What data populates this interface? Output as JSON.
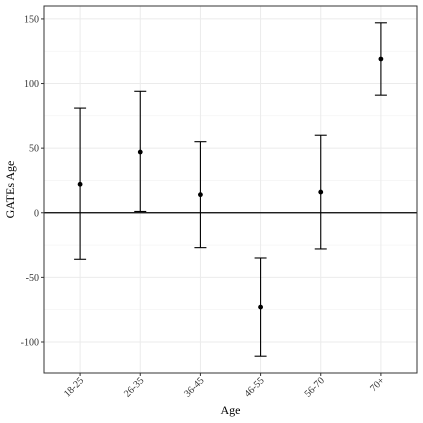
{
  "chart_data": {
    "type": "errorbar",
    "xlabel": "Age",
    "ylabel": "GATEs Age",
    "categories": [
      "18-25",
      "26-35",
      "36-45",
      "46-55",
      "56-70",
      "70+"
    ],
    "series": [
      {
        "estimate": [
          22,
          47,
          14,
          -73,
          16,
          119
        ],
        "lower": [
          -36,
          1,
          -27,
          -111,
          -28,
          91
        ],
        "upper": [
          81,
          94,
          55,
          -35,
          60,
          147
        ]
      }
    ],
    "yticks": [
      -100,
      -50,
      0,
      50,
      100,
      150
    ],
    "ylim": [
      -124,
      160
    ],
    "reference_line": 0,
    "grid": true,
    "colors": {
      "marks": "#000000",
      "grid": "#ebebeb",
      "panel_border": "#333333"
    }
  }
}
